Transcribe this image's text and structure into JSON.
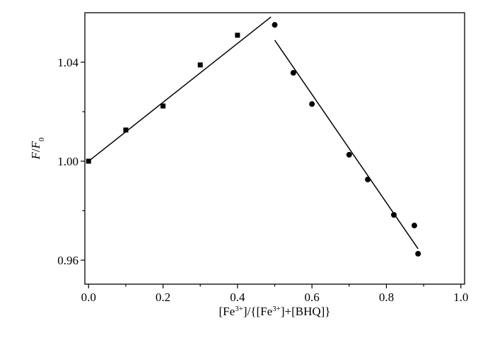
{
  "chart_data": {
    "type": "scatter",
    "xlabel": [
      {
        "text": "[Fe"
      },
      {
        "text": "3+",
        "style": "sup"
      },
      {
        "text": "]/{[Fe"
      },
      {
        "text": "3+",
        "style": "sup"
      },
      {
        "text": "]+[BHQ]}"
      }
    ],
    "ylabel": [
      {
        "text": "F",
        "style": "italic"
      },
      {
        "text": "/"
      },
      {
        "text": "F",
        "style": "italic"
      },
      {
        "text": "0",
        "style": "sub"
      }
    ],
    "xlim": [
      -0.01,
      1.01
    ],
    "ylim": [
      0.9503,
      1.06
    ],
    "xticks": [
      {
        "value": 0,
        "label": "0.0"
      },
      0.2,
      0.4,
      0.6,
      0.8,
      {
        "value": 1,
        "label": "1.0"
      }
    ],
    "yticks": [
      0.96,
      {
        "value": 1,
        "label": "1.00"
      },
      1.04
    ],
    "xminorticks": [
      0.1,
      0.3,
      0.5,
      0.7,
      0.9
    ],
    "yminorticks": [
      0.98,
      1.02
    ],
    "grid": false,
    "series": [
      {
        "color": "#000000",
        "marker": "square",
        "x": [
          0,
          0.1,
          0.2,
          0.3,
          0.4
        ],
        "values": [
          1.0,
          1.0126,
          1.0223,
          1.0389,
          1.0509
        ]
      },
      {
        "color": "#000000",
        "marker": "circle",
        "x": [
          0.5,
          0.55,
          0.6,
          0.7,
          0.75,
          0.82,
          0.875,
          0.885
        ],
        "values": [
          1.0551,
          1.0357,
          1.0231,
          1.0026,
          0.9926,
          0.9783,
          0.974,
          0.9626
        ]
      },
      {
        "color": "#000000",
        "marker": "line",
        "x": [
          0,
          0.49
        ],
        "values": [
          1.0,
          1.0583
        ]
      },
      {
        "color": "#000000",
        "marker": "line",
        "x": [
          0.5,
          0.885
        ],
        "values": [
          1.0489,
          0.9646
        ]
      }
    ]
  }
}
